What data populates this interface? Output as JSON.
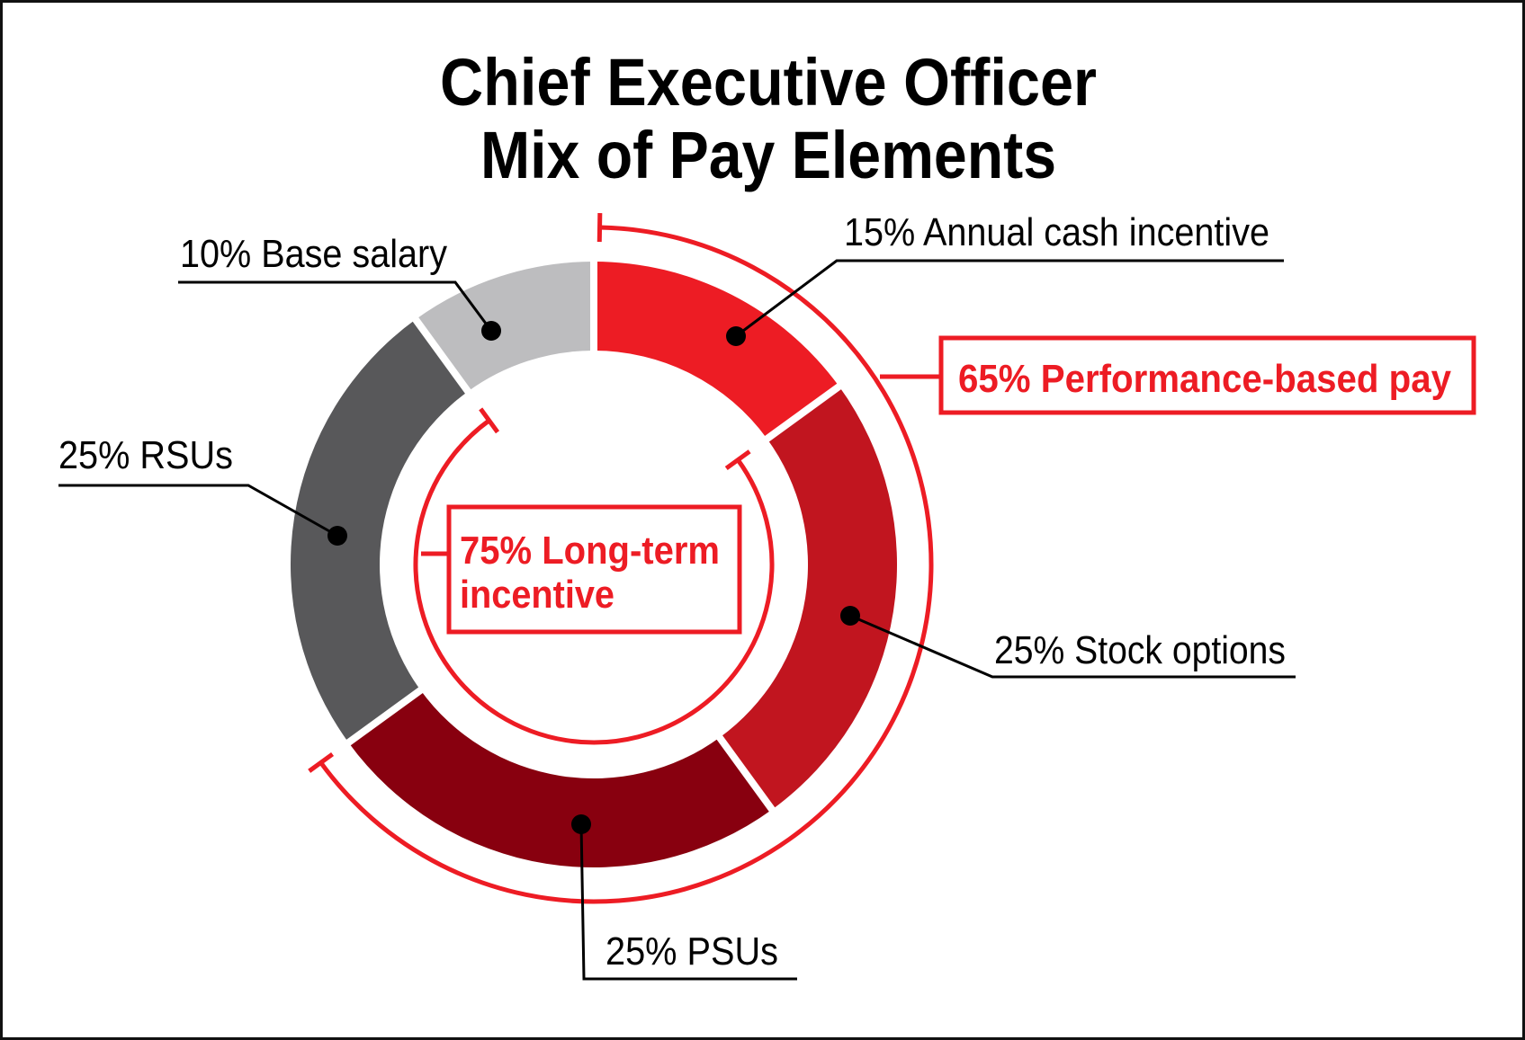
{
  "chart_data": {
    "type": "pie",
    "variant": "donut",
    "title": [
      "Chief Executive Officer",
      "Mix of Pay Elements"
    ],
    "start": "12 o'clock, clockwise",
    "segments": [
      {
        "name": "Annual cash incentive",
        "value": 15,
        "label": "15% Annual cash incentive",
        "color": "#ED1C24"
      },
      {
        "name": "Stock options",
        "value": 25,
        "label": "25% Stock options",
        "color": "#C1151F"
      },
      {
        "name": "PSUs",
        "value": 25,
        "label": "25% PSUs",
        "color": "#88000F"
      },
      {
        "name": "RSUs",
        "value": 25,
        "label": "25% RSUs",
        "color": "#58585A"
      },
      {
        "name": "Base salary",
        "value": 10,
        "label": "10% Base salary",
        "color": "#BDBDBF"
      }
    ],
    "groupings": [
      {
        "name": "Performance-based pay",
        "value": 65,
        "label": "65% Performance-based pay",
        "covers": [
          "Annual cash incentive",
          "Stock options",
          "PSUs"
        ]
      },
      {
        "name": "Long-term incentive",
        "value": 75,
        "label_lines": [
          "75% Long-term",
          "incentive"
        ],
        "covers": [
          "Stock options",
          "PSUs",
          "RSUs"
        ]
      }
    ],
    "accent_color": "#ED1C24"
  }
}
